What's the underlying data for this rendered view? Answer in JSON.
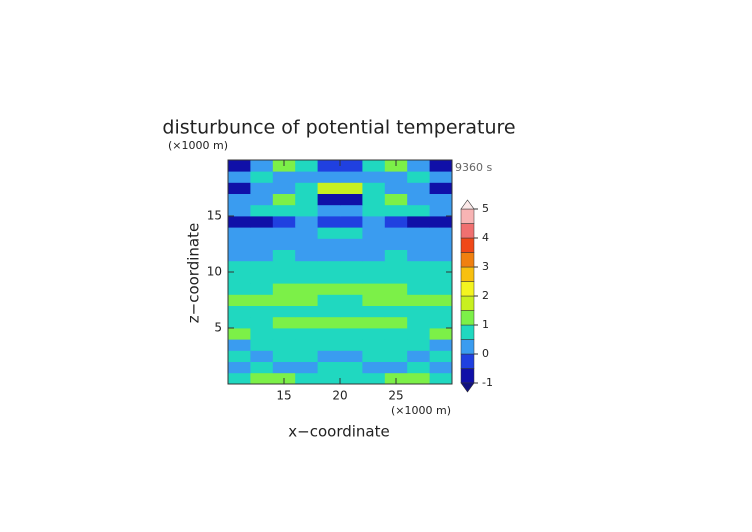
{
  "chart_data": {
    "type": "contour",
    "title": "disturbunce of potential temperature",
    "y_unit_label": "(×1000 m)",
    "x_unit_label": "(×1000 m)",
    "x_label": "x−coordinate",
    "y_label": "z−coordinate",
    "time_label": "9360 s",
    "x": [
      10,
      12,
      14,
      16,
      18,
      20,
      22,
      24,
      26,
      28,
      30
    ],
    "y": [
      0,
      1,
      2,
      3,
      4,
      5,
      6,
      7,
      8,
      9,
      10,
      11,
      12,
      13,
      14,
      15,
      16,
      17,
      18,
      19,
      20
    ],
    "z": [
      [
        0.7,
        1.2,
        1.3,
        0.6,
        0.7,
        0.7,
        0.6,
        1.3,
        1.2,
        0.7
      ],
      [
        0.3,
        0.6,
        0.4,
        0.2,
        0.5,
        0.5,
        0.2,
        0.4,
        0.6,
        0.3
      ],
      [
        0.6,
        0.4,
        0.7,
        0.6,
        0.2,
        0.2,
        0.6,
        0.7,
        0.4,
        0.6
      ],
      [
        0.4,
        0.6,
        0.7,
        0.8,
        0.6,
        0.6,
        0.8,
        0.7,
        0.6,
        0.4
      ],
      [
        1.1,
        0.8,
        0.7,
        0.8,
        0.9,
        0.9,
        0.8,
        0.7,
        0.8,
        1.1
      ],
      [
        0.8,
        0.9,
        1.2,
        1.2,
        1.1,
        1.1,
        1.2,
        1.2,
        0.9,
        0.8
      ],
      [
        0.7,
        0.8,
        0.8,
        0.7,
        0.8,
        0.8,
        0.7,
        0.8,
        0.8,
        0.7
      ],
      [
        1.1,
        1.2,
        1.3,
        1.1,
        0.8,
        0.8,
        1.1,
        1.3,
        1.2,
        1.1
      ],
      [
        0.8,
        0.9,
        1.1,
        1.2,
        1.3,
        1.3,
        1.2,
        1.1,
        0.9,
        0.8
      ],
      [
        0.8,
        0.7,
        0.8,
        0.8,
        0.9,
        0.9,
        0.8,
        0.8,
        0.7,
        0.8
      ],
      [
        0.6,
        0.7,
        0.6,
        0.7,
        0.7,
        0.7,
        0.7,
        0.6,
        0.7,
        0.6
      ],
      [
        0.4,
        0.4,
        0.5,
        0.4,
        0.3,
        0.3,
        0.4,
        0.5,
        0.4,
        0.4
      ],
      [
        0.3,
        0.4,
        0.3,
        0.3,
        0.4,
        0.4,
        0.3,
        0.3,
        0.4,
        0.3
      ],
      [
        0.2,
        0.3,
        0.4,
        0.3,
        0.6,
        0.6,
        0.3,
        0.4,
        0.3,
        0.2
      ],
      [
        -0.6,
        -0.7,
        -0.3,
        0.2,
        -0.4,
        -0.4,
        0.2,
        -0.3,
        -0.7,
        -0.6
      ],
      [
        0.3,
        0.5,
        0.8,
        0.5,
        0.2,
        0.2,
        0.5,
        0.8,
        0.5,
        0.3
      ],
      [
        0.2,
        0.4,
        1.4,
        0.6,
        -0.6,
        -0.6,
        0.6,
        1.4,
        0.4,
        0.2
      ],
      [
        -0.6,
        0.3,
        0.4,
        0.7,
        1.8,
        1.8,
        0.7,
        0.4,
        0.3,
        -0.6
      ],
      [
        0.4,
        0.6,
        0.3,
        0.2,
        0.3,
        0.3,
        0.2,
        0.3,
        0.6,
        0.4
      ],
      [
        -0.6,
        0.2,
        1.3,
        0.5,
        -0.4,
        -0.4,
        0.5,
        1.3,
        0.2,
        -0.6
      ]
    ],
    "xlim": [
      10,
      30
    ],
    "ylim": [
      0,
      20
    ],
    "xticks": [
      15,
      20,
      25
    ],
    "yticks": [
      5,
      10,
      15
    ],
    "levels": [
      -1,
      -0.5,
      0,
      0.5,
      1,
      1.5,
      2,
      2.5,
      3,
      3.5,
      4,
      4.5,
      5
    ],
    "colors": [
      "#1010a8",
      "#2040e0",
      "#3a9cf0",
      "#20d8c0",
      "#7cf048",
      "#c8f020",
      "#f4f420",
      "#f8c010",
      "#f08010",
      "#f04818",
      "#f07070",
      "#f8b4b4"
    ],
    "colorbar_ticks": [
      -1,
      0,
      1,
      2,
      3,
      4,
      5
    ]
  }
}
